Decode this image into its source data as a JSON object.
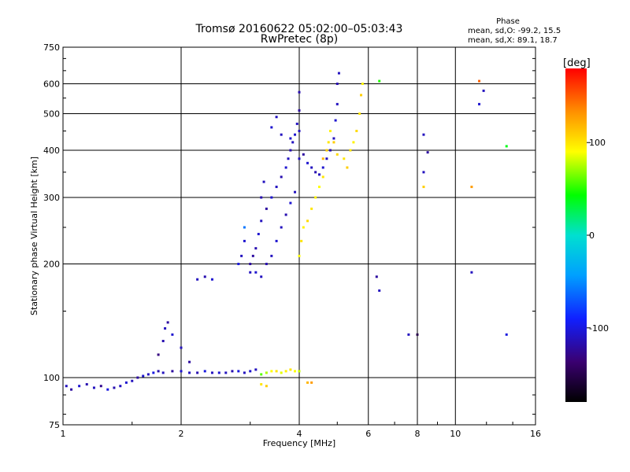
{
  "chart_data": {
    "type": "scatter",
    "title": "Tromsø 20160622 05:02:00–05:03:43",
    "subtitle": "RwPretec (8p)",
    "xlabel": "Frequency [MHz]",
    "ylabel": "Stationary phase Virtual Height [km]",
    "x_scale": "log",
    "y_scale": "log",
    "xlim": [
      1,
      16
    ],
    "ylim": [
      75,
      750
    ],
    "x_ticks": [
      1,
      2,
      4,
      6,
      8,
      10,
      16
    ],
    "y_ticks": [
      75,
      100,
      200,
      300,
      400,
      500,
      600,
      750
    ],
    "grid": true,
    "stats": {
      "title": "Phase",
      "line_o": "mean, sd,O:  -99.2, 15.5",
      "line_x": "mean, sd,X:  89.1, 18.7"
    },
    "colorbar": {
      "label": "[deg]",
      "range": [
        -180,
        180
      ],
      "ticks": [
        100,
        0,
        -100
      ]
    },
    "series": [
      {
        "name": "",
        "points": [
          [
            1.02,
            95,
            -110
          ],
          [
            1.05,
            93,
            -120
          ],
          [
            1.1,
            95,
            -105
          ],
          [
            1.15,
            96,
            -115
          ],
          [
            1.2,
            94,
            -110
          ],
          [
            1.25,
            95,
            -125
          ],
          [
            1.3,
            93,
            -100
          ],
          [
            1.35,
            94,
            -115
          ],
          [
            1.4,
            95,
            -110
          ],
          [
            1.45,
            97,
            -105
          ],
          [
            1.5,
            98,
            -110
          ],
          [
            1.55,
            100,
            -120
          ],
          [
            1.6,
            101,
            -105
          ],
          [
            1.65,
            102,
            -110
          ],
          [
            1.7,
            103,
            -100
          ],
          [
            1.75,
            104,
            -115
          ],
          [
            1.8,
            103,
            -110
          ],
          [
            1.9,
            104,
            -120
          ],
          [
            2.0,
            104,
            -105
          ],
          [
            2.1,
            103,
            -110
          ],
          [
            2.2,
            103,
            -115
          ],
          [
            2.3,
            104,
            -100
          ],
          [
            2.4,
            103,
            -110
          ],
          [
            2.5,
            103,
            -105
          ],
          [
            2.6,
            103,
            -110
          ],
          [
            2.7,
            104,
            -115
          ],
          [
            2.8,
            104,
            -100
          ],
          [
            2.9,
            103,
            -110
          ],
          [
            3.0,
            104,
            -105
          ],
          [
            3.1,
            105,
            -110
          ],
          [
            1.75,
            115,
            -130
          ],
          [
            1.8,
            125,
            -115
          ],
          [
            1.82,
            135,
            -110
          ],
          [
            1.85,
            140,
            -120
          ],
          [
            1.9,
            130,
            -105
          ],
          [
            2.0,
            120,
            -110
          ],
          [
            2.1,
            110,
            -120
          ],
          [
            2.2,
            182,
            -110
          ],
          [
            2.3,
            185,
            -115
          ],
          [
            2.4,
            182,
            -105
          ],
          [
            2.8,
            200,
            -100
          ],
          [
            2.85,
            210,
            -110
          ],
          [
            2.9,
            230,
            -105
          ],
          [
            2.9,
            250,
            -60
          ],
          [
            3.0,
            190,
            -110
          ],
          [
            3.05,
            210,
            -120
          ],
          [
            3.1,
            220,
            -115
          ],
          [
            3.15,
            240,
            -105
          ],
          [
            3.2,
            260,
            -110
          ],
          [
            3.2,
            300,
            -115
          ],
          [
            3.25,
            330,
            -110
          ],
          [
            3.3,
            280,
            -120
          ],
          [
            3.4,
            300,
            -105
          ],
          [
            3.5,
            320,
            -110
          ],
          [
            3.6,
            340,
            -115
          ],
          [
            3.7,
            360,
            -105
          ],
          [
            3.75,
            380,
            -110
          ],
          [
            3.8,
            400,
            -115
          ],
          [
            3.85,
            420,
            -110
          ],
          [
            3.9,
            440,
            -105
          ],
          [
            3.95,
            470,
            -110
          ],
          [
            4.0,
            510,
            -120
          ],
          [
            4.0,
            570,
            -115
          ],
          [
            4.0,
            450,
            -110
          ],
          [
            3.8,
            430,
            -105
          ],
          [
            3.6,
            440,
            -110
          ],
          [
            3.4,
            460,
            -105
          ],
          [
            3.5,
            490,
            -110
          ],
          [
            3.0,
            200,
            -120
          ],
          [
            3.1,
            190,
            -105
          ],
          [
            3.2,
            185,
            -110
          ],
          [
            3.3,
            200,
            -115
          ],
          [
            3.4,
            210,
            -110
          ],
          [
            3.5,
            230,
            -105
          ],
          [
            3.6,
            250,
            -110
          ],
          [
            3.7,
            270,
            -115
          ],
          [
            3.8,
            290,
            -105
          ],
          [
            3.9,
            310,
            -110
          ],
          [
            4.0,
            380,
            -110
          ],
          [
            4.1,
            390,
            -120
          ],
          [
            4.2,
            370,
            -105
          ],
          [
            4.3,
            360,
            -110
          ],
          [
            4.4,
            350,
            -115
          ],
          [
            4.5,
            345,
            -110
          ],
          [
            4.6,
            360,
            -105
          ],
          [
            4.7,
            380,
            -110
          ],
          [
            4.8,
            400,
            -115
          ],
          [
            4.9,
            430,
            -110
          ],
          [
            4.95,
            480,
            -105
          ],
          [
            5.0,
            530,
            -110
          ],
          [
            5.0,
            600,
            -115
          ],
          [
            5.05,
            640,
            -110
          ],
          [
            6.3,
            185,
            -120
          ],
          [
            6.4,
            170,
            -110
          ],
          [
            7.6,
            130,
            -110
          ],
          [
            8.0,
            130,
            -150
          ],
          [
            8.3,
            440,
            -110
          ],
          [
            8.3,
            350,
            -110
          ],
          [
            8.5,
            395,
            -120
          ],
          [
            11.0,
            190,
            -110
          ],
          [
            11.5,
            530,
            -105
          ],
          [
            11.8,
            575,
            -110
          ],
          [
            13.5,
            130,
            -100
          ],
          [
            3.2,
            102,
            60
          ],
          [
            3.3,
            103,
            75
          ],
          [
            3.4,
            104,
            90
          ],
          [
            3.5,
            104,
            100
          ],
          [
            3.6,
            103,
            85
          ],
          [
            3.7,
            104,
            95
          ],
          [
            3.8,
            105,
            100
          ],
          [
            3.9,
            104,
            90
          ],
          [
            4.0,
            104,
            80
          ],
          [
            3.2,
            96,
            100
          ],
          [
            3.3,
            95,
            110
          ],
          [
            4.2,
            97,
            120
          ],
          [
            4.3,
            97,
            130
          ],
          [
            4.0,
            210,
            90
          ],
          [
            4.05,
            230,
            100
          ],
          [
            4.1,
            250,
            95
          ],
          [
            4.2,
            260,
            105
          ],
          [
            4.3,
            280,
            100
          ],
          [
            4.4,
            300,
            95
          ],
          [
            4.5,
            320,
            90
          ],
          [
            4.6,
            340,
            100
          ],
          [
            4.6,
            380,
            120
          ],
          [
            4.7,
            400,
            110
          ],
          [
            4.75,
            420,
            100
          ],
          [
            4.8,
            450,
            95
          ],
          [
            4.9,
            420,
            110
          ],
          [
            5.0,
            390,
            105
          ],
          [
            5.2,
            380,
            100
          ],
          [
            5.3,
            360,
            110
          ],
          [
            5.4,
            400,
            100
          ],
          [
            5.5,
            420,
            95
          ],
          [
            5.6,
            450,
            105
          ],
          [
            5.7,
            500,
            100
          ],
          [
            5.75,
            560,
            110
          ],
          [
            5.8,
            600,
            95
          ],
          [
            6.4,
            610,
            50
          ],
          [
            8.3,
            320,
            110
          ],
          [
            11.0,
            320,
            130
          ],
          [
            11.5,
            610,
            150
          ],
          [
            13.5,
            410,
            40
          ]
        ]
      }
    ]
  }
}
